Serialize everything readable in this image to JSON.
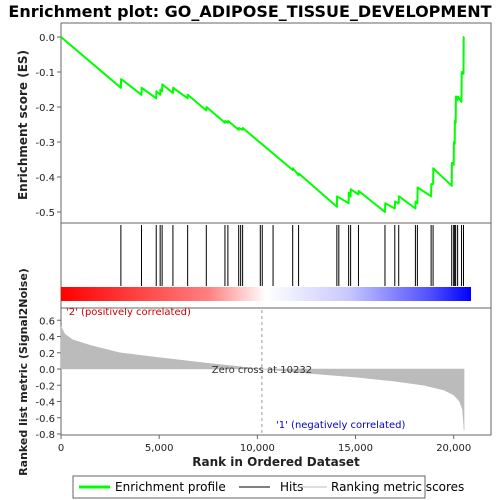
{
  "chart_data": {
    "title": "Enrichment plot: GO_ADIPOSE_TISSUE_DEVELOPMENT",
    "type": "line",
    "top_panel": {
      "ylabel": "Enrichment score (ES)",
      "ylim": [
        -0.53,
        0.03
      ],
      "yticks": [
        0.0,
        -0.1,
        -0.2,
        -0.3,
        -0.4,
        -0.5
      ],
      "ytick_labels": [
        "0.0",
        "-0.1",
        "-0.2",
        "-0.3",
        "-0.4",
        "-0.5"
      ],
      "series": [
        {
          "name": "Enrichment profile",
          "color": "#00ff00",
          "x": [
            0,
            3050,
            3060,
            4100,
            4110,
            4850,
            4860,
            5050,
            5060,
            5150,
            5160,
            5700,
            5710,
            6450,
            6460,
            7400,
            7410,
            8350,
            8360,
            8500,
            8510,
            9050,
            9060,
            9250,
            9260,
            11800,
            11810,
            12100,
            12110,
            14050,
            14060,
            14650,
            14660,
            14750,
            14760,
            15150,
            15160,
            16500,
            16510,
            17000,
            17010,
            17200,
            17210,
            18050,
            18060,
            18150,
            18160,
            18850,
            18860,
            18950,
            18960,
            19900,
            19910,
            20000,
            20010,
            20050,
            20060,
            20100,
            20110,
            20200,
            20210,
            20400,
            20410,
            20500,
            20510,
            20530
          ],
          "y": [
            0.0,
            -0.145,
            -0.12,
            -0.165,
            -0.145,
            -0.175,
            -0.155,
            -0.165,
            -0.15,
            -0.155,
            -0.135,
            -0.16,
            -0.145,
            -0.175,
            -0.165,
            -0.21,
            -0.2,
            -0.245,
            -0.24,
            -0.245,
            -0.24,
            -0.265,
            -0.26,
            -0.265,
            -0.26,
            -0.38,
            -0.375,
            -0.395,
            -0.39,
            -0.485,
            -0.455,
            -0.475,
            -0.445,
            -0.455,
            -0.435,
            -0.45,
            -0.44,
            -0.5,
            -0.475,
            -0.49,
            -0.47,
            -0.475,
            -0.455,
            -0.49,
            -0.47,
            -0.475,
            -0.43,
            -0.455,
            -0.42,
            -0.42,
            -0.375,
            -0.425,
            -0.36,
            -0.365,
            -0.3,
            -0.305,
            -0.24,
            -0.245,
            -0.17,
            -0.18,
            -0.17,
            -0.185,
            -0.1,
            -0.105,
            0.0,
            0.0
          ]
        }
      ]
    },
    "hits": [
      3050,
      4100,
      4850,
      5050,
      5150,
      5700,
      6450,
      7400,
      8350,
      8500,
      9050,
      9150,
      9250,
      10150,
      10250,
      10800,
      11800,
      12100,
      14050,
      14150,
      14650,
      14750,
      15150,
      16500,
      17000,
      17200,
      18050,
      18150,
      18850,
      18950,
      19900,
      20000,
      20050,
      20100,
      20200,
      20400,
      20500
    ],
    "bottom_panel": {
      "ylabel": "Ranked list metric (Signal2Noise)",
      "xlabel": "Rank in Ordered Dataset",
      "ylim": [
        -0.8,
        0.7
      ],
      "yticks": [
        0.6,
        0.4,
        0.2,
        0.0,
        -0.2,
        -0.4,
        -0.6,
        -0.8
      ],
      "ytick_labels": [
        "0.6",
        "0.4",
        "0.2",
        "0.0",
        "-0.2",
        "-0.4",
        "-0.6",
        "-0.8"
      ],
      "xlim": [
        0,
        21900
      ],
      "xticks": [
        0,
        5000,
        10000,
        15000,
        20000
      ],
      "xtick_labels": [
        "0",
        "5,000",
        "10,000",
        "15,000",
        "20,000"
      ],
      "metric_points": [
        [
          0,
          0.52
        ],
        [
          200,
          0.43
        ],
        [
          600,
          0.36
        ],
        [
          1500,
          0.29
        ],
        [
          3000,
          0.2
        ],
        [
          5000,
          0.14
        ],
        [
          7500,
          0.07
        ],
        [
          10232,
          0.0
        ],
        [
          12500,
          -0.05
        ],
        [
          15000,
          -0.1
        ],
        [
          17000,
          -0.15
        ],
        [
          18500,
          -0.2
        ],
        [
          19500,
          -0.26
        ],
        [
          20000,
          -0.32
        ],
        [
          20300,
          -0.4
        ],
        [
          20450,
          -0.5
        ],
        [
          20530,
          -0.75
        ]
      ],
      "zero_cross_label": "Zero cross at 10232",
      "zero_cross_x": 10232,
      "pos_label": "'2' (positively correlated)",
      "neg_label": "'1' (negatively correlated)"
    },
    "legend": {
      "placement": "bottom",
      "entries": [
        {
          "label": "Enrichment profile",
          "color": "#00ff00"
        },
        {
          "label": "Hits",
          "color": "#000000"
        },
        {
          "label": "Ranking metric scores",
          "color": "#bbbbbb"
        }
      ]
    },
    "colors": {
      "profile": "#00ff00",
      "positive": "#ff0000",
      "negative": "#0000ff",
      "metric_fill": "#bbbbbb",
      "pos_text": "#cc0000",
      "neg_text": "#0000cc"
    },
    "grid": false
  }
}
